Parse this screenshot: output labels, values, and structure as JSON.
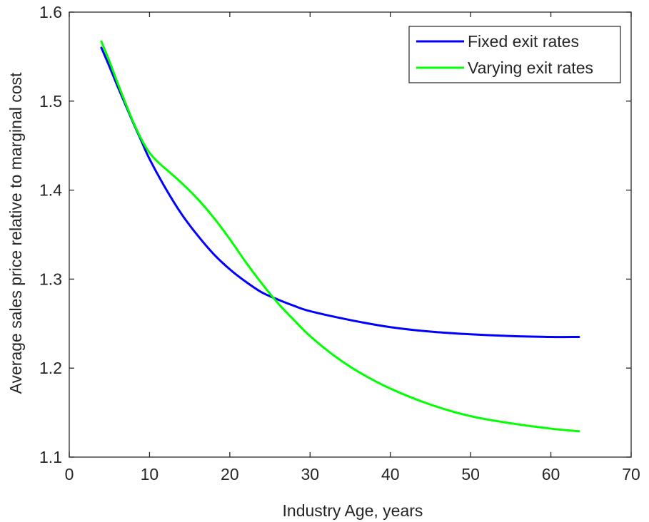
{
  "chart_data": {
    "type": "line",
    "xlabel": "Industry Age, years",
    "ylabel": "Average sales price relative to marginal cost",
    "xlim": [
      0,
      70
    ],
    "ylim": [
      1.1,
      1.6
    ],
    "xticks": [
      "0",
      "10",
      "20",
      "30",
      "40",
      "50",
      "60",
      "70"
    ],
    "yticks": [
      "1.1",
      "1.2",
      "1.3",
      "1.4",
      "1.5",
      "1.6"
    ],
    "grid": false,
    "legend_position": "top-right",
    "series": [
      {
        "name": "Fixed exit rates",
        "color": "#0000ff",
        "x": [
          4,
          5,
          6,
          7,
          8,
          9,
          10,
          12,
          14,
          16,
          18,
          20,
          22,
          24,
          26,
          28,
          30,
          35,
          40,
          45,
          50,
          55,
          60,
          63.5
        ],
        "y": [
          1.56,
          1.539,
          1.517,
          1.496,
          1.475,
          1.455,
          1.435,
          1.402,
          1.373,
          1.349,
          1.328,
          1.311,
          1.297,
          1.285,
          1.277,
          1.27,
          1.264,
          1.254,
          1.246,
          1.241,
          1.238,
          1.236,
          1.235,
          1.235
        ]
      },
      {
        "name": "Varying exit rates",
        "color": "#00ff00",
        "x": [
          4,
          5,
          6,
          7,
          8,
          9,
          10,
          11,
          12,
          14,
          16,
          18,
          20,
          22,
          24,
          26,
          28,
          30,
          33,
          36,
          40,
          45,
          50,
          55,
          60,
          63.5
        ],
        "y": [
          1.567,
          1.545,
          1.521,
          1.498,
          1.476,
          1.457,
          1.442,
          1.432,
          1.424,
          1.408,
          1.39,
          1.369,
          1.345,
          1.319,
          1.295,
          1.273,
          1.254,
          1.236,
          1.214,
          1.196,
          1.177,
          1.159,
          1.146,
          1.138,
          1.132,
          1.129
        ]
      }
    ]
  }
}
